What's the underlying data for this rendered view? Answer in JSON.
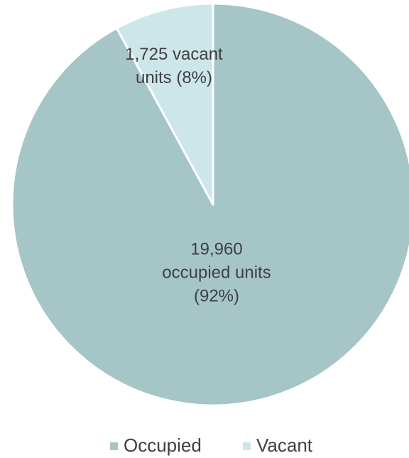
{
  "chart_data": {
    "type": "pie",
    "categories": [
      "Occupied",
      "Vacant"
    ],
    "values": [
      19960,
      1725
    ],
    "value_labels": [
      [
        "19,960",
        "occupied units",
        "(92%)"
      ],
      [
        "1,725 vacant",
        "units (8%)"
      ]
    ],
    "colors": [
      "#a5c5c7",
      "#cde6ea"
    ],
    "start_angle": 0,
    "direction": "clockwise",
    "legend": "bottom"
  }
}
